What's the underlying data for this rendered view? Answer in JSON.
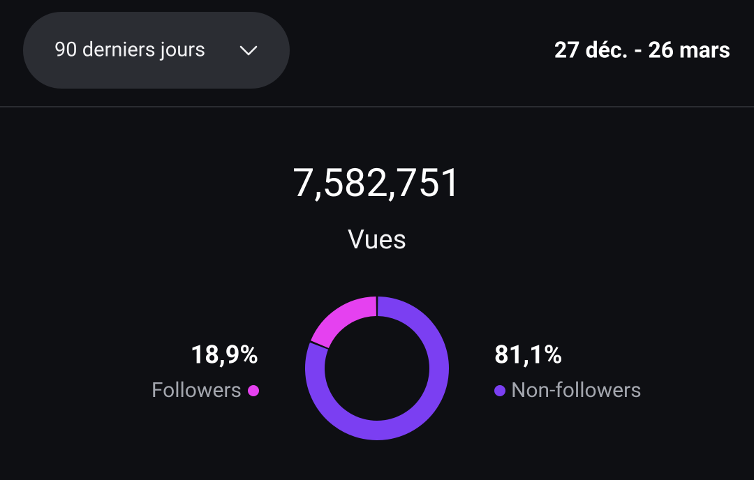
{
  "header": {
    "period": "90 derniers jours",
    "date_range": "27 déc. - 26 mars"
  },
  "summary": {
    "total": "7,582,751",
    "label": "Vues"
  },
  "chart_data": {
    "type": "pie",
    "categories": [
      "Followers",
      "Non-followers"
    ],
    "values": [
      18.9,
      81.1
    ],
    "value_labels": [
      "18,9%",
      "81,1%"
    ],
    "colors": [
      "#e541f0",
      "#7b3ff2"
    ]
  }
}
